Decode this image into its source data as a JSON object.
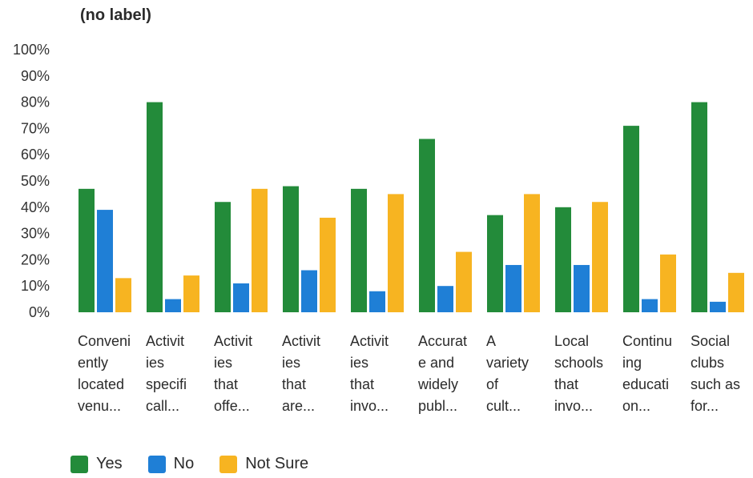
{
  "chart_data": {
    "type": "bar",
    "title": "(no label)",
    "xlabel": "",
    "ylabel": "",
    "ylim": [
      0,
      100
    ],
    "y_ticks": [
      "0%",
      "10%",
      "20%",
      "30%",
      "40%",
      "50%",
      "60%",
      "70%",
      "80%",
      "90%",
      "100%"
    ],
    "grid": false,
    "legend_position": "bottom-left",
    "categories": [
      [
        "Conveni",
        "ently",
        "located",
        "venu..."
      ],
      [
        "Activit",
        "ies",
        "specifi",
        "call..."
      ],
      [
        "Activit",
        "ies",
        "that",
        "offe..."
      ],
      [
        "Activit",
        "ies",
        "that",
        "are..."
      ],
      [
        "Activit",
        "ies",
        "that",
        "invo..."
      ],
      [
        "Accurat",
        "e and",
        "widely",
        "publ..."
      ],
      [
        "A",
        "variety",
        "of",
        "cult..."
      ],
      [
        "Local",
        "schools",
        "that",
        "invo..."
      ],
      [
        "Continu",
        "ing",
        "educati",
        "on..."
      ],
      [
        "Social",
        "clubs",
        "such as",
        "for..."
      ]
    ],
    "series": [
      {
        "name": "Yes",
        "color": "#238b3a",
        "values": [
          47,
          80,
          42,
          48,
          47,
          66,
          37,
          40,
          71,
          80
        ]
      },
      {
        "name": "No",
        "color": "#1f7fd6",
        "values": [
          39,
          5,
          11,
          16,
          8,
          10,
          18,
          18,
          5,
          4
        ]
      },
      {
        "name": "Not Sure",
        "color": "#f7b421",
        "values": [
          13,
          14,
          47,
          36,
          45,
          23,
          45,
          42,
          22,
          15
        ]
      }
    ]
  }
}
